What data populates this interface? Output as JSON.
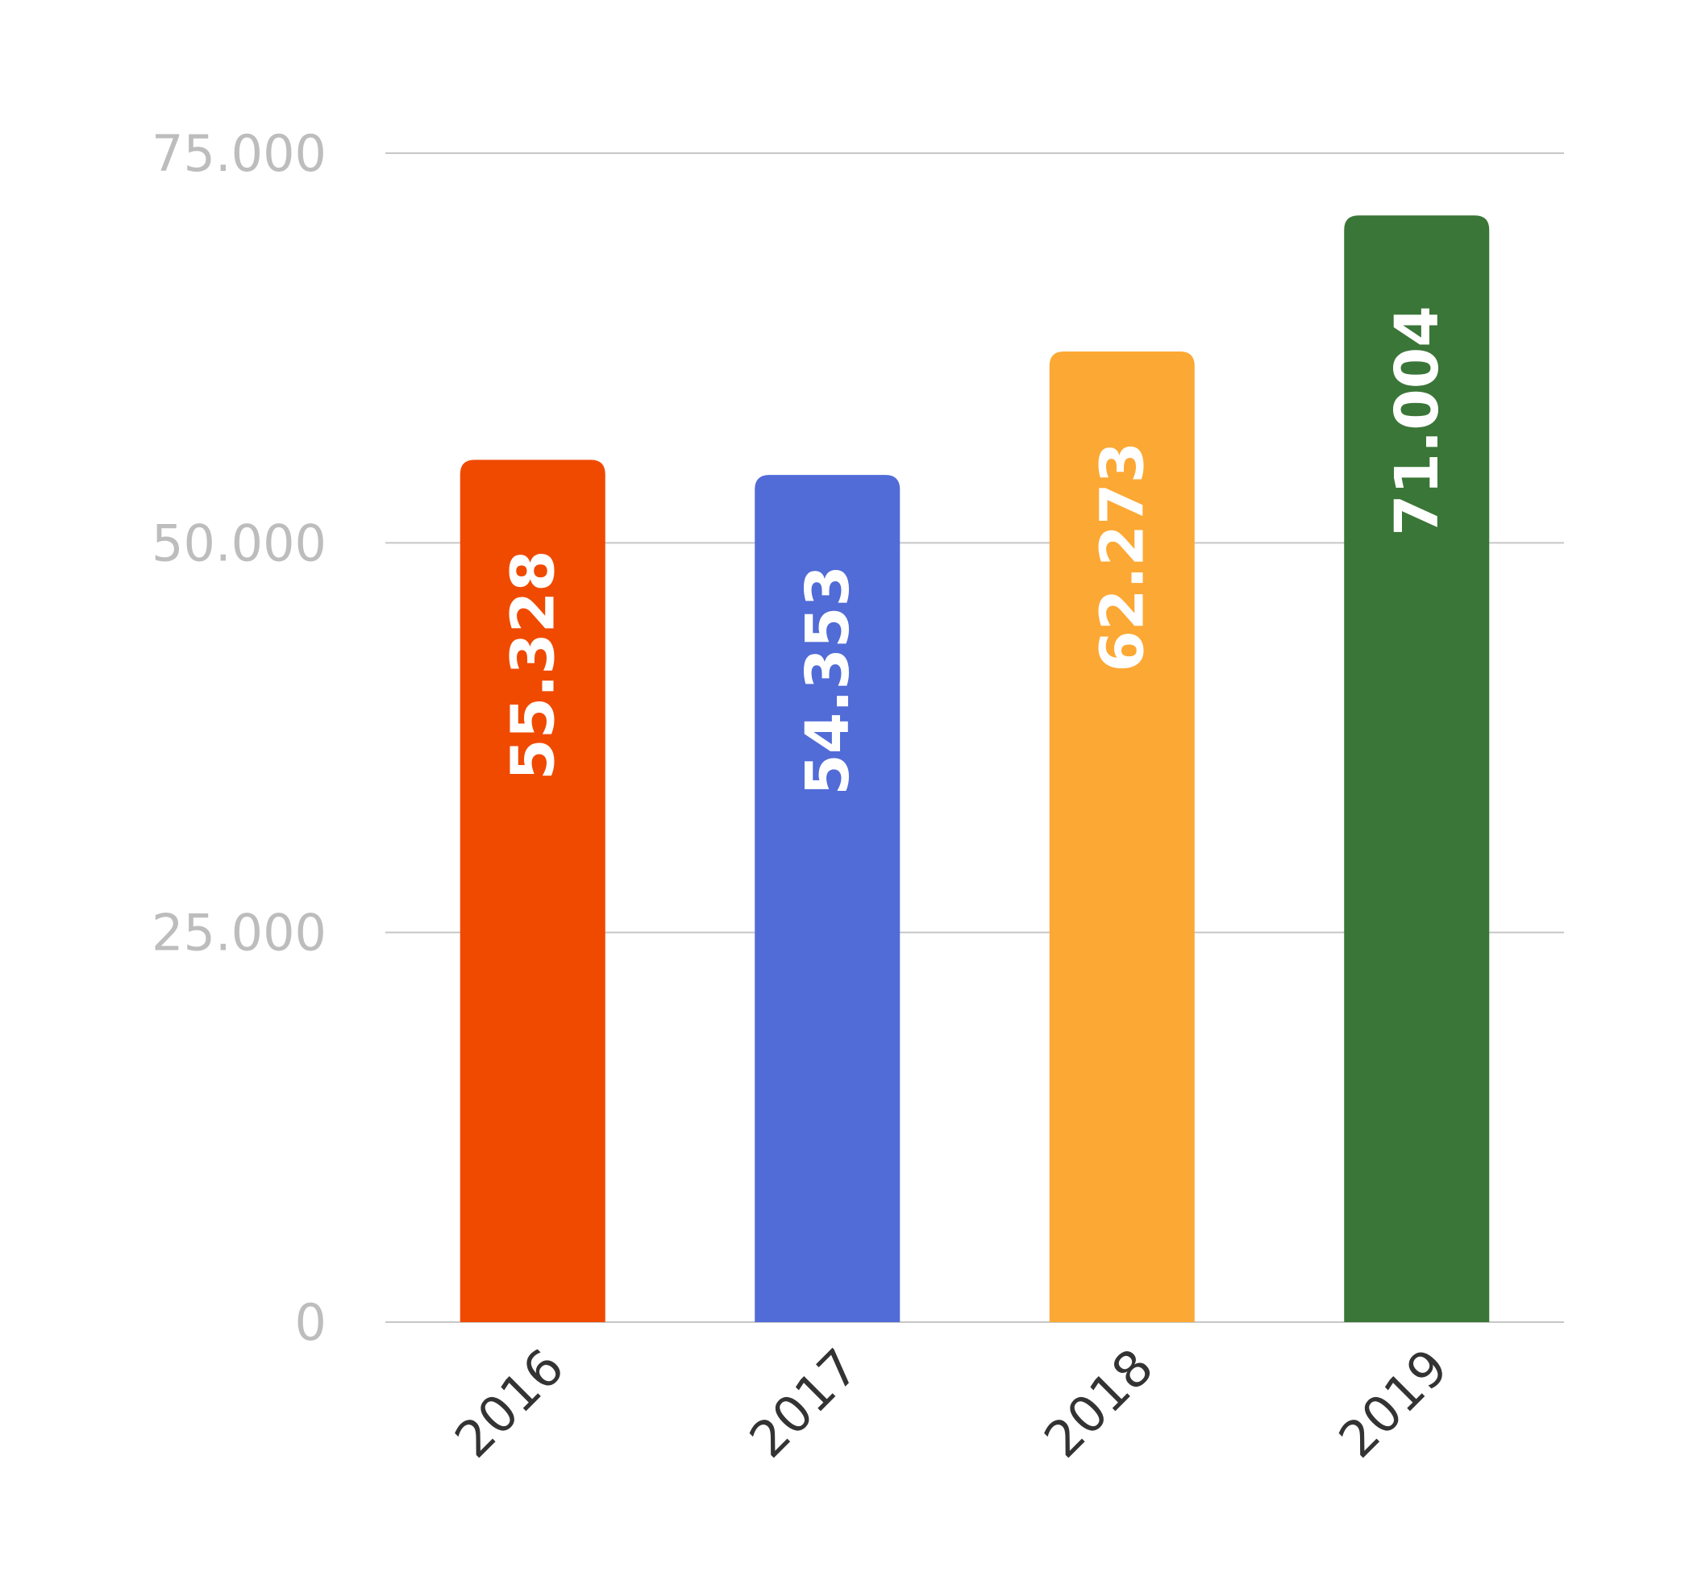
{
  "chart_data": {
    "type": "bar",
    "title": "",
    "xlabel": "",
    "ylabel": "",
    "categories": [
      "2016",
      "2017",
      "2018",
      "2019"
    ],
    "values": [
      55328,
      54353,
      62273,
      71004
    ],
    "value_labels": [
      "55.328",
      "54.353",
      "62.273",
      "71.004"
    ],
    "ylim": [
      0,
      75000
    ],
    "y_ticks": [
      0,
      25000,
      50000,
      75000
    ],
    "y_tick_labels": [
      "0",
      "25.000",
      "50.000",
      "75.000"
    ],
    "grid": true,
    "legend": "none",
    "colors": [
      "#f04a00",
      "#516bd7",
      "#fca834",
      "#3a7637"
    ]
  }
}
